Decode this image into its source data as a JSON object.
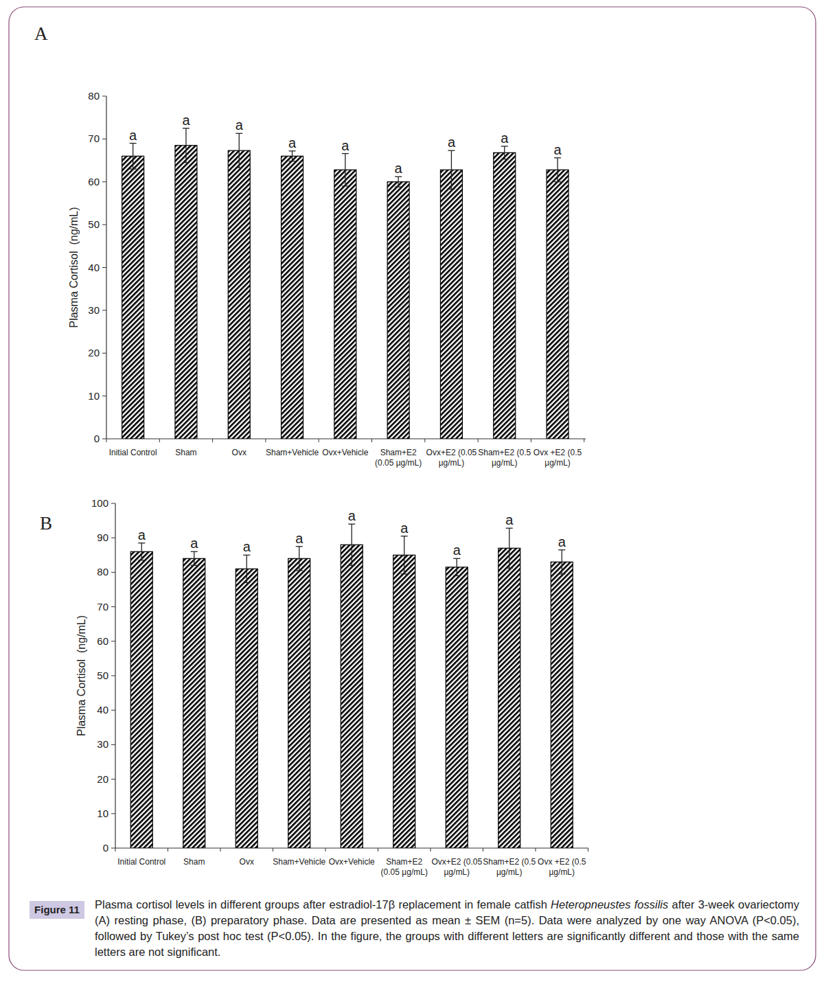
{
  "chart_data": [
    {
      "type": "bar",
      "title": "A",
      "ylabel": "Plasma Cortisol  (ng/mL)",
      "color": "#000000",
      "categories": [
        "Initial Control",
        "Sham",
        "Ovx",
        "Sham+Vehicle",
        "Ovx+Vehicle",
        "Sham+E2\n(0.05 µg/mL)",
        "Ovx+E2 (0.05\nµg/mL)",
        "Sham+E2 (0.5\nµg/mL)",
        "Ovx +E2 (0.5\nµg/mL)"
      ],
      "values": [
        66,
        68.5,
        67.3,
        66,
        62.8,
        60,
        62.8,
        66.8,
        62.8
      ],
      "errors": [
        3,
        4,
        4,
        1.2,
        3.8,
        1.2,
        4.5,
        1.5,
        2.8
      ],
      "annotations": [
        "a",
        "a",
        "a",
        "a",
        "a",
        "a",
        "a",
        "a",
        "a"
      ],
      "ylim": [
        0,
        80
      ],
      "yticks": [
        0,
        10,
        20,
        30,
        40,
        50,
        60,
        70,
        80
      ],
      "grid": false
    },
    {
      "type": "bar",
      "title": "B",
      "ylabel": "Plasma Cortisol  (ng/mL)",
      "color": "#000000",
      "categories": [
        "Initial Control",
        "Sham",
        "Ovx",
        "Sham+Vehicle",
        "Ovx+Vehicle",
        "Sham+E2\n(0.05 µg/mL)",
        "Ovx+E2 (0.05\nµg/mL)",
        "Sham+E2 (0.5\nµg/mL)",
        "Ovx +E2 (0.5\nµg/mL)"
      ],
      "values": [
        86,
        84,
        81,
        84,
        88,
        85,
        81.5,
        87,
        83
      ],
      "errors": [
        2.5,
        2,
        4,
        3.5,
        6,
        5.5,
        2.5,
        5.8,
        3.5
      ],
      "annotations": [
        "a",
        "a",
        "a",
        "a",
        "a",
        "a",
        "a",
        "a",
        "a"
      ],
      "ylim": [
        0,
        100
      ],
      "yticks": [
        0,
        10,
        20,
        30,
        40,
        50,
        60,
        70,
        80,
        90,
        100
      ],
      "grid": false
    }
  ],
  "figure": {
    "label": "Figure 11",
    "caption": [
      "Plasma cortisol levels in different groups after estradiol-17β replacement in  female catfish ",
      "Heteropneustes fossilis",
      " after 3-week ovariectomy (A) resting phase, (B) preparatory phase. Data are presented as mean ± SEM (n=5). Data were analyzed by one way  ANOVA (P<0.05), followed by Tukey’s post hoc test (P<0.05). In the figure, the groups with different letters are significantly different and those with the same letters are not significant."
    ]
  }
}
